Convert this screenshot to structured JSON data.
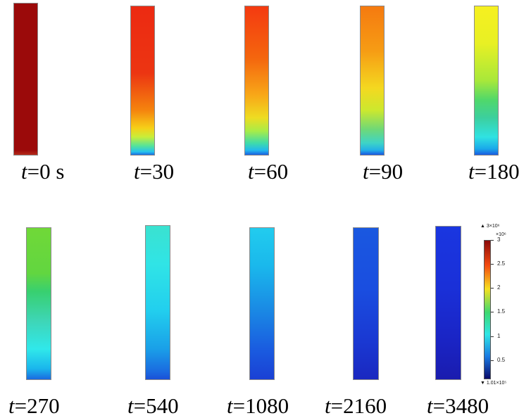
{
  "frames": [
    {
      "label": "0 s",
      "gradient": "linear-gradient(to bottom, #9b0a0a 0%, #9b0a0a 97%, #b52a1a 100%)"
    },
    {
      "label": "30",
      "gradient": "linear-gradient(to bottom, #ec2a12 0%, #ec3512 45%, #f5840e 70%, #f6d018 82%, #c8ee3a 88%, #54e39a 94%, #26c2ee 98%, #1a6be0 100%)"
    },
    {
      "label": "60",
      "gradient": "linear-gradient(to bottom, #f43a10 0%, #f4660e 35%, #f8a818 60%, #eedc22 75%, #a8ec48 84%, #40dca8 92%, #22b8ee 97%, #1a60e0 100%)"
    },
    {
      "label": "90",
      "gradient": "linear-gradient(to bottom, #f57a10 0%, #f69c14 30%, #f4d820 55%, #cce82e 70%, #6ed878 83%, #3ed4c6 92%, #22aee8 97%, #1a56e0 100%)"
    },
    {
      "label": "180",
      "gradient": "linear-gradient(to bottom, #f6f020 0%, #e8f024 25%, #a8e83a 50%, #50d86a 63%, #3ccf9e 75%, #30e2e2 88%, #1aa8ea 96%, #1a5ce0 100%)"
    },
    {
      "label": "270",
      "gradient": "linear-gradient(to bottom, #70d838 0%, #62d640 30%, #38d070 42%, #3ed6b8 62%, #30e8ea 80%, #1ab6ec 93%, #1a6ae0 100%)"
    },
    {
      "label": "540",
      "gradient": "linear-gradient(to bottom, #3ae2d0 0%, #30e4e6 25%, #22cfee 55%, #1aa0e8 80%, #1a6ae0 95%, #1a50d8 100%)"
    },
    {
      "label": "1080",
      "gradient": "linear-gradient(to bottom, #22ccee 0%, #1ab8ec 25%, #1a88e4 55%, #1a5ce0 80%, #1a40d4 100%)"
    },
    {
      "label": "2160",
      "gradient": "linear-gradient(to bottom, #1a58e0 0%, #1a4ee0 40%, #1a38d2 75%, #1a28c0 100%)"
    },
    {
      "label": "3480",
      "gradient": "linear-gradient(to bottom, #1a36e0 0%, #1a30d8 40%, #1a24c4 75%, #1a1cae 100%)"
    }
  ],
  "time_prefix": "t",
  "time_eq": "=",
  "legend": {
    "max_label": "▲ 3×10⁶",
    "scale_label": "×10⁶",
    "min_label": "▼ 1.01×10⁵",
    "ticks": [
      "3",
      "2.5",
      "2",
      "1.5",
      "1",
      "0.5"
    ],
    "colors": {
      "top": "#8b0a0a",
      "upper": "#f44a10",
      "mid_high": "#f6e020",
      "mid": "#3ed870",
      "mid_low": "#30e6e6",
      "lower": "#1a7ae2",
      "bottom": "#0a0a6a"
    }
  }
}
